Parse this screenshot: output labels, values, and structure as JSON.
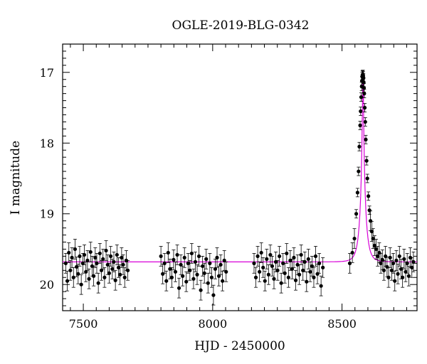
{
  "chart_data": {
    "type": "scatter",
    "title": "OGLE-2019-BLG-0342",
    "xlabel": "HJD - 2450000",
    "ylabel": "I magnitude",
    "xlim": [
      7420,
      8790
    ],
    "ylim": [
      20.37,
      16.6
    ],
    "y_inverted": true,
    "grid": false,
    "xticks": [
      7500,
      8000,
      8500
    ],
    "yticks": [
      17,
      18,
      19,
      20
    ],
    "xtick_labels": [
      "7500",
      "8000",
      "8500"
    ],
    "ytick_labels": [
      "17",
      "18",
      "19",
      "20"
    ],
    "colors": {
      "points": "#000000",
      "model": "#d800d8"
    },
    "model": {
      "name": "",
      "baseline_mag": 19.68,
      "peak_hjd": 8581,
      "peak_mag": 17.03,
      "tE": 20,
      "u0": 0.0824
    },
    "series": [
      {
        "x": [
          7432,
          7438,
          7444,
          7450,
          7456,
          7462,
          7468,
          7474,
          7480,
          7486,
          7492,
          7498,
          7504,
          7510,
          7516,
          7522,
          7528,
          7534,
          7540,
          7546,
          7552,
          7558,
          7564,
          7570,
          7576,
          7582,
          7588,
          7594,
          7600,
          7606,
          7612,
          7618,
          7624,
          7630,
          7636,
          7642,
          7648,
          7654,
          7660,
          7666,
          7672,
          7800,
          7807,
          7814,
          7821,
          7828,
          7835,
          7842,
          7849,
          7856,
          7863,
          7870,
          7877,
          7884,
          7891,
          7898,
          7905,
          7912,
          7919,
          7926,
          7933,
          7940,
          7947,
          7954,
          7961,
          7968,
          7975,
          7982,
          7989,
          7996,
          8003,
          8010,
          8017,
          8024,
          8031,
          8038,
          8045,
          8052,
          8160,
          8167,
          8174,
          8181,
          8188,
          8195,
          8202,
          8209,
          8216,
          8223,
          8230,
          8237,
          8244,
          8251,
          8258,
          8265,
          8272,
          8279,
          8286,
          8293,
          8300,
          8307,
          8314,
          8321,
          8328,
          8335,
          8342,
          8349,
          8356,
          8363,
          8370,
          8377,
          8384,
          8391,
          8398,
          8405,
          8412,
          8419,
          8426,
          8530,
          8540,
          8548,
          8555,
          8560,
          8564,
          8567,
          8570,
          8572,
          8574,
          8576,
          8577,
          8578,
          8579,
          8580,
          8581,
          8582,
          8583,
          8584,
          8585,
          8586,
          8588,
          8590,
          8592,
          8595,
          8598,
          8602,
          8606,
          8610,
          8615,
          8620,
          8626,
          8632,
          8638,
          8644,
          8650,
          8656,
          8662,
          8668,
          8674,
          8680,
          8686,
          8692,
          8698,
          8704,
          8710,
          8716,
          8722,
          8728,
          8734,
          8740,
          8746,
          8752,
          8758,
          8764,
          8770,
          8776
        ],
        "y": [
          19.7,
          19.95,
          19.55,
          19.8,
          19.62,
          19.9,
          19.5,
          19.75,
          19.85,
          19.6,
          20.0,
          19.7,
          19.58,
          19.82,
          19.66,
          19.92,
          19.54,
          19.74,
          19.88,
          19.62,
          19.7,
          19.98,
          19.56,
          19.8,
          19.64,
          19.9,
          19.52,
          19.72,
          19.84,
          19.6,
          19.78,
          19.68,
          19.94,
          19.58,
          19.76,
          19.86,
          19.62,
          19.72,
          19.9,
          19.66,
          19.8,
          19.6,
          19.85,
          19.7,
          19.95,
          19.55,
          19.78,
          19.9,
          19.65,
          19.82,
          19.58,
          20.05,
          19.72,
          19.88,
          19.62,
          19.96,
          19.7,
          19.8,
          19.56,
          19.92,
          19.68,
          19.86,
          19.6,
          20.08,
          19.74,
          19.84,
          19.64,
          19.98,
          19.7,
          19.9,
          20.15,
          19.78,
          19.62,
          19.88,
          19.72,
          19.95,
          19.66,
          19.82,
          19.7,
          19.9,
          19.6,
          19.82,
          19.55,
          19.76,
          19.95,
          19.64,
          19.86,
          19.58,
          19.74,
          19.92,
          19.68,
          19.8,
          19.6,
          19.98,
          19.7,
          19.84,
          19.56,
          19.9,
          19.66,
          19.78,
          19.62,
          19.94,
          19.72,
          19.86,
          19.58,
          19.8,
          19.68,
          19.96,
          19.64,
          19.82,
          19.74,
          19.9,
          19.6,
          19.85,
          19.7,
          20.02,
          19.76,
          19.7,
          19.55,
          19.35,
          19.0,
          18.7,
          18.4,
          18.05,
          17.75,
          17.55,
          17.35,
          17.2,
          17.12,
          17.06,
          17.04,
          17.03,
          17.03,
          17.05,
          17.08,
          17.14,
          17.22,
          17.3,
          17.5,
          17.7,
          17.95,
          18.25,
          18.5,
          18.75,
          18.95,
          19.1,
          19.25,
          19.35,
          19.45,
          19.5,
          19.6,
          19.55,
          19.7,
          19.65,
          19.8,
          19.6,
          19.75,
          19.9,
          19.62,
          19.8,
          19.7,
          19.95,
          19.66,
          19.85,
          19.6,
          19.78,
          19.9,
          19.64,
          19.82,
          19.7,
          19.88,
          19.62,
          19.76,
          19.68
        ]
      }
    ]
  }
}
